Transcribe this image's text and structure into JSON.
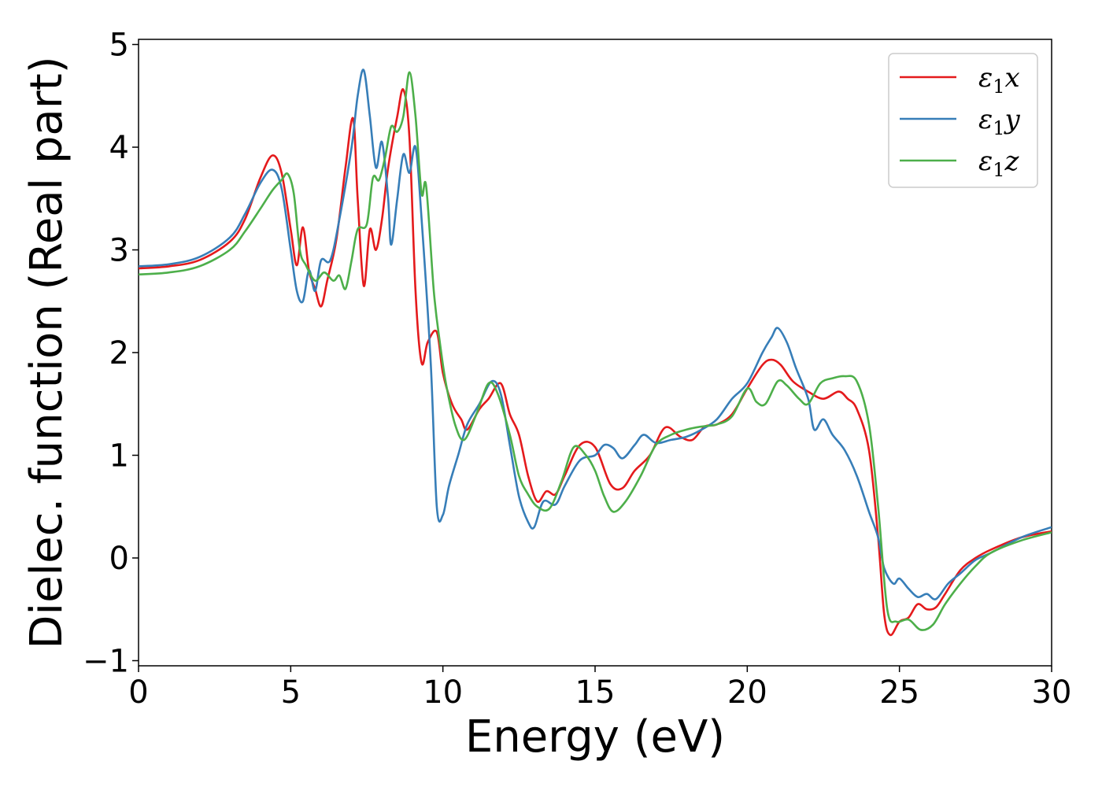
{
  "chart_data": {
    "type": "line",
    "title": "",
    "xlabel": "Energy (eV)",
    "ylabel": "Dielec. function (Real part)",
    "xlim": [
      0,
      30
    ],
    "ylim": [
      -1.05,
      5.05
    ],
    "xticks": [
      0,
      5,
      10,
      15,
      20,
      25,
      30
    ],
    "xtick_labels": [
      "0",
      "5",
      "10",
      "15",
      "20",
      "25",
      "30"
    ],
    "yticks": [
      -1,
      0,
      1,
      2,
      3,
      4,
      5
    ],
    "ytick_labels": [
      "−1",
      "0",
      "1",
      "2",
      "3",
      "4",
      "5"
    ],
    "grid": false,
    "legend_position": "top-right",
    "series": [
      {
        "name": "ε₁x",
        "legend": {
          "base": "ε",
          "sub": "1",
          "comp": "x"
        },
        "color": "#e41a1c",
        "points": [
          [
            0,
            2.82
          ],
          [
            1,
            2.84
          ],
          [
            2,
            2.9
          ],
          [
            3,
            3.08
          ],
          [
            3.5,
            3.3
          ],
          [
            4,
            3.7
          ],
          [
            4.4,
            3.92
          ],
          [
            4.7,
            3.75
          ],
          [
            5,
            3.2
          ],
          [
            5.2,
            2.85
          ],
          [
            5.4,
            3.22
          ],
          [
            5.6,
            2.8
          ],
          [
            5.8,
            2.62
          ],
          [
            6,
            2.45
          ],
          [
            6.2,
            2.7
          ],
          [
            6.5,
            3.1
          ],
          [
            6.8,
            3.8
          ],
          [
            7.05,
            4.28
          ],
          [
            7.2,
            3.5
          ],
          [
            7.4,
            2.65
          ],
          [
            7.6,
            3.2
          ],
          [
            7.8,
            3.0
          ],
          [
            8.0,
            3.3
          ],
          [
            8.2,
            3.8
          ],
          [
            8.5,
            4.3
          ],
          [
            8.7,
            4.56
          ],
          [
            8.9,
            4.1
          ],
          [
            9.1,
            2.6
          ],
          [
            9.3,
            1.9
          ],
          [
            9.5,
            2.1
          ],
          [
            9.8,
            2.2
          ],
          [
            10,
            1.8
          ],
          [
            10.3,
            1.5
          ],
          [
            10.6,
            1.35
          ],
          [
            10.8,
            1.25
          ],
          [
            11.2,
            1.45
          ],
          [
            11.5,
            1.55
          ],
          [
            11.9,
            1.7
          ],
          [
            12.2,
            1.4
          ],
          [
            12.5,
            1.2
          ],
          [
            12.8,
            0.8
          ],
          [
            13.1,
            0.55
          ],
          [
            13.4,
            0.65
          ],
          [
            13.7,
            0.62
          ],
          [
            14.0,
            0.8
          ],
          [
            14.5,
            1.1
          ],
          [
            15,
            1.08
          ],
          [
            15.5,
            0.72
          ],
          [
            15.9,
            0.68
          ],
          [
            16.3,
            0.85
          ],
          [
            16.8,
            1.0
          ],
          [
            17.3,
            1.27
          ],
          [
            17.8,
            1.18
          ],
          [
            18.2,
            1.15
          ],
          [
            18.6,
            1.28
          ],
          [
            19,
            1.3
          ],
          [
            19.5,
            1.4
          ],
          [
            20,
            1.65
          ],
          [
            20.5,
            1.88
          ],
          [
            20.8,
            1.93
          ],
          [
            21.1,
            1.88
          ],
          [
            21.5,
            1.72
          ],
          [
            22,
            1.62
          ],
          [
            22.5,
            1.55
          ],
          [
            23,
            1.62
          ],
          [
            23.3,
            1.55
          ],
          [
            23.6,
            1.45
          ],
          [
            24,
            1.05
          ],
          [
            24.3,
            0.2
          ],
          [
            24.5,
            -0.55
          ],
          [
            24.7,
            -0.75
          ],
          [
            25,
            -0.62
          ],
          [
            25.3,
            -0.58
          ],
          [
            25.6,
            -0.45
          ],
          [
            25.9,
            -0.5
          ],
          [
            26.2,
            -0.48
          ],
          [
            26.5,
            -0.35
          ],
          [
            27,
            -0.12
          ],
          [
            27.5,
            0.0
          ],
          [
            28,
            0.08
          ],
          [
            29,
            0.2
          ],
          [
            30,
            0.26
          ]
        ]
      },
      {
        "name": "ε₁y",
        "legend": {
          "base": "ε",
          "sub": "1",
          "comp": "y"
        },
        "color": "#377eb8",
        "points": [
          [
            0,
            2.84
          ],
          [
            1,
            2.86
          ],
          [
            2,
            2.93
          ],
          [
            3,
            3.12
          ],
          [
            3.5,
            3.35
          ],
          [
            4,
            3.65
          ],
          [
            4.4,
            3.78
          ],
          [
            4.7,
            3.6
          ],
          [
            5,
            3.0
          ],
          [
            5.2,
            2.6
          ],
          [
            5.4,
            2.5
          ],
          [
            5.6,
            2.8
          ],
          [
            5.8,
            2.6
          ],
          [
            6.0,
            2.9
          ],
          [
            6.3,
            2.9
          ],
          [
            6.6,
            3.3
          ],
          [
            7.0,
            4.0
          ],
          [
            7.2,
            4.5
          ],
          [
            7.4,
            4.75
          ],
          [
            7.6,
            4.3
          ],
          [
            7.8,
            3.8
          ],
          [
            8.0,
            4.05
          ],
          [
            8.2,
            3.5
          ],
          [
            8.3,
            3.05
          ],
          [
            8.5,
            3.5
          ],
          [
            8.7,
            3.93
          ],
          [
            8.9,
            3.75
          ],
          [
            9.1,
            4.0
          ],
          [
            9.3,
            3.3
          ],
          [
            9.6,
            1.9
          ],
          [
            9.8,
            0.5
          ],
          [
            10,
            0.42
          ],
          [
            10.2,
            0.7
          ],
          [
            10.5,
            1.0
          ],
          [
            10.8,
            1.3
          ],
          [
            11.2,
            1.5
          ],
          [
            11.6,
            1.72
          ],
          [
            11.9,
            1.6
          ],
          [
            12.2,
            1.1
          ],
          [
            12.5,
            0.6
          ],
          [
            12.8,
            0.35
          ],
          [
            13,
            0.3
          ],
          [
            13.3,
            0.55
          ],
          [
            13.7,
            0.52
          ],
          [
            14,
            0.7
          ],
          [
            14.5,
            0.95
          ],
          [
            15,
            1.0
          ],
          [
            15.3,
            1.1
          ],
          [
            15.6,
            1.07
          ],
          [
            15.9,
            0.97
          ],
          [
            16.3,
            1.1
          ],
          [
            16.6,
            1.2
          ],
          [
            17,
            1.12
          ],
          [
            17.5,
            1.15
          ],
          [
            18,
            1.18
          ],
          [
            18.5,
            1.25
          ],
          [
            19,
            1.35
          ],
          [
            19.5,
            1.55
          ],
          [
            20,
            1.7
          ],
          [
            20.5,
            2.0
          ],
          [
            20.8,
            2.15
          ],
          [
            21.0,
            2.24
          ],
          [
            21.3,
            2.1
          ],
          [
            21.6,
            1.85
          ],
          [
            22,
            1.55
          ],
          [
            22.2,
            1.25
          ],
          [
            22.5,
            1.35
          ],
          [
            22.8,
            1.2
          ],
          [
            23.2,
            1.05
          ],
          [
            23.6,
            0.8
          ],
          [
            24,
            0.45
          ],
          [
            24.3,
            0.2
          ],
          [
            24.5,
            -0.1
          ],
          [
            24.8,
            -0.25
          ],
          [
            25,
            -0.2
          ],
          [
            25.3,
            -0.3
          ],
          [
            25.6,
            -0.38
          ],
          [
            25.9,
            -0.35
          ],
          [
            26.2,
            -0.4
          ],
          [
            26.6,
            -0.25
          ],
          [
            27,
            -0.15
          ],
          [
            27.5,
            -0.02
          ],
          [
            28,
            0.05
          ],
          [
            29,
            0.2
          ],
          [
            30,
            0.3
          ]
        ]
      },
      {
        "name": "ε₁z",
        "legend": {
          "base": "ε",
          "sub": "1",
          "comp": "z"
        },
        "color": "#4daf4a",
        "points": [
          [
            0,
            2.76
          ],
          [
            1,
            2.78
          ],
          [
            2,
            2.84
          ],
          [
            3,
            3.0
          ],
          [
            3.5,
            3.18
          ],
          [
            4,
            3.4
          ],
          [
            4.4,
            3.58
          ],
          [
            4.7,
            3.68
          ],
          [
            4.9,
            3.74
          ],
          [
            5.1,
            3.55
          ],
          [
            5.3,
            3.0
          ],
          [
            5.5,
            2.85
          ],
          [
            5.8,
            2.7
          ],
          [
            6.1,
            2.78
          ],
          [
            6.4,
            2.7
          ],
          [
            6.6,
            2.75
          ],
          [
            6.8,
            2.62
          ],
          [
            7.0,
            2.9
          ],
          [
            7.2,
            3.2
          ],
          [
            7.5,
            3.25
          ],
          [
            7.7,
            3.7
          ],
          [
            7.9,
            3.68
          ],
          [
            8.1,
            3.9
          ],
          [
            8.3,
            4.2
          ],
          [
            8.5,
            4.15
          ],
          [
            8.7,
            4.3
          ],
          [
            8.9,
            4.73
          ],
          [
            9.1,
            4.3
          ],
          [
            9.3,
            3.55
          ],
          [
            9.45,
            3.62
          ],
          [
            9.7,
            2.6
          ],
          [
            9.9,
            2.1
          ],
          [
            10.1,
            1.7
          ],
          [
            10.4,
            1.3
          ],
          [
            10.7,
            1.15
          ],
          [
            11.1,
            1.4
          ],
          [
            11.5,
            1.7
          ],
          [
            11.8,
            1.6
          ],
          [
            12.2,
            1.2
          ],
          [
            12.5,
            0.8
          ],
          [
            12.8,
            0.62
          ],
          [
            13.1,
            0.5
          ],
          [
            13.5,
            0.48
          ],
          [
            13.9,
            0.75
          ],
          [
            14.3,
            1.08
          ],
          [
            14.7,
            1.0
          ],
          [
            15,
            0.85
          ],
          [
            15.3,
            0.6
          ],
          [
            15.6,
            0.45
          ],
          [
            16,
            0.55
          ],
          [
            16.5,
            0.8
          ],
          [
            17,
            1.1
          ],
          [
            17.5,
            1.2
          ],
          [
            18,
            1.25
          ],
          [
            18.5,
            1.28
          ],
          [
            19,
            1.3
          ],
          [
            19.5,
            1.38
          ],
          [
            20,
            1.65
          ],
          [
            20.3,
            1.52
          ],
          [
            20.6,
            1.5
          ],
          [
            21,
            1.72
          ],
          [
            21.3,
            1.68
          ],
          [
            21.7,
            1.55
          ],
          [
            22,
            1.5
          ],
          [
            22.4,
            1.7
          ],
          [
            22.8,
            1.75
          ],
          [
            23.2,
            1.77
          ],
          [
            23.6,
            1.72
          ],
          [
            24,
            1.3
          ],
          [
            24.3,
            0.5
          ],
          [
            24.6,
            -0.5
          ],
          [
            24.9,
            -0.62
          ],
          [
            25.3,
            -0.6
          ],
          [
            25.7,
            -0.7
          ],
          [
            26.1,
            -0.65
          ],
          [
            26.5,
            -0.45
          ],
          [
            27,
            -0.25
          ],
          [
            27.5,
            -0.08
          ],
          [
            28,
            0.05
          ],
          [
            29,
            0.17
          ],
          [
            30,
            0.25
          ]
        ]
      }
    ]
  }
}
